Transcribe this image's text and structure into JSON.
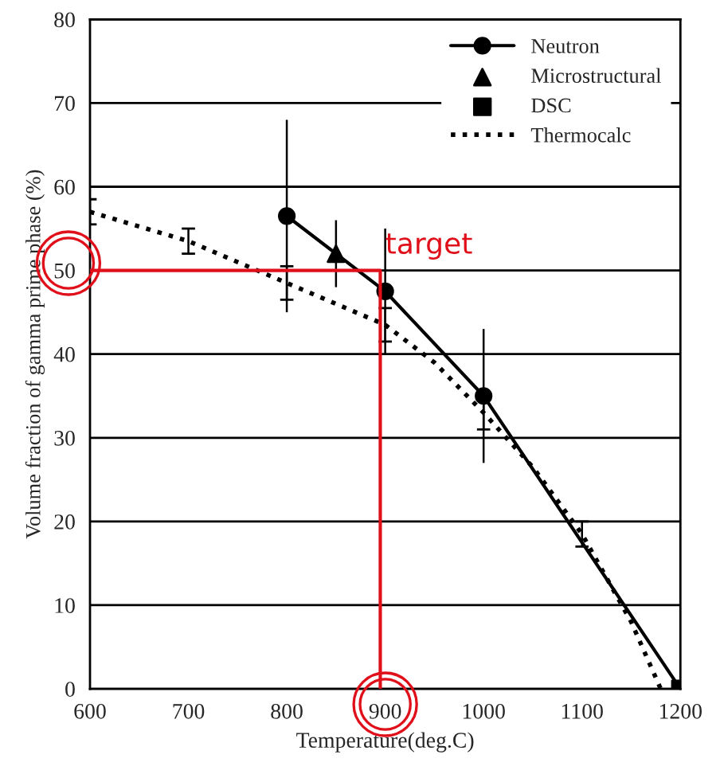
{
  "chart_data": {
    "type": "line",
    "xlabel": "Temperature(deg.C)",
    "ylabel": "Volume fraction of gamma prime phase (%)",
    "xlim": [
      600,
      1200
    ],
    "ylim": [
      0,
      80
    ],
    "xticks": [
      600,
      700,
      800,
      900,
      1000,
      1100,
      1200
    ],
    "yticks": [
      0,
      10,
      20,
      30,
      40,
      50,
      60,
      70,
      80
    ],
    "grid": "y",
    "legend": "top right",
    "annotations": [
      {
        "text": "target",
        "x": 900,
        "y": 52
      }
    ],
    "series": [
      {
        "name": "Neutron",
        "color": "#000000",
        "marker": "circle",
        "line_style": "solid",
        "x": [
          800,
          900,
          1000,
          1200
        ],
        "values": [
          56.5,
          47.5,
          35,
          0
        ],
        "errors": [
          11.5,
          7.5,
          8,
          null
        ]
      },
      {
        "name": "Microstructural",
        "type": "scatter",
        "color": "#000000",
        "marker": "triangle",
        "x": [
          850
        ],
        "values": [
          52
        ],
        "errors": [
          4
        ]
      },
      {
        "name": "DSC",
        "type": "scatter",
        "color": "#000000",
        "marker": "square",
        "x": [
          1200
        ],
        "values": [
          0
        ]
      },
      {
        "name": "Thermocalc",
        "color": "#000000",
        "marker": "none",
        "line_style": "dotted",
        "x": [
          600,
          700,
          800,
          900,
          950,
          1000,
          1050,
          1100,
          1150,
          1180
        ],
        "values": [
          57,
          53.5,
          48.5,
          43.5,
          39,
          33,
          26.5,
          18.5,
          8,
          0
        ],
        "errors": [
          1.5,
          1.5,
          2,
          2,
          null,
          2,
          null,
          1.5,
          null,
          null
        ]
      },
      {
        "color": "#e0101a",
        "marker": "none",
        "line_style": "solid",
        "x": [
          600,
          895,
          895
        ],
        "values": [
          50,
          50,
          0
        ]
      }
    ]
  }
}
